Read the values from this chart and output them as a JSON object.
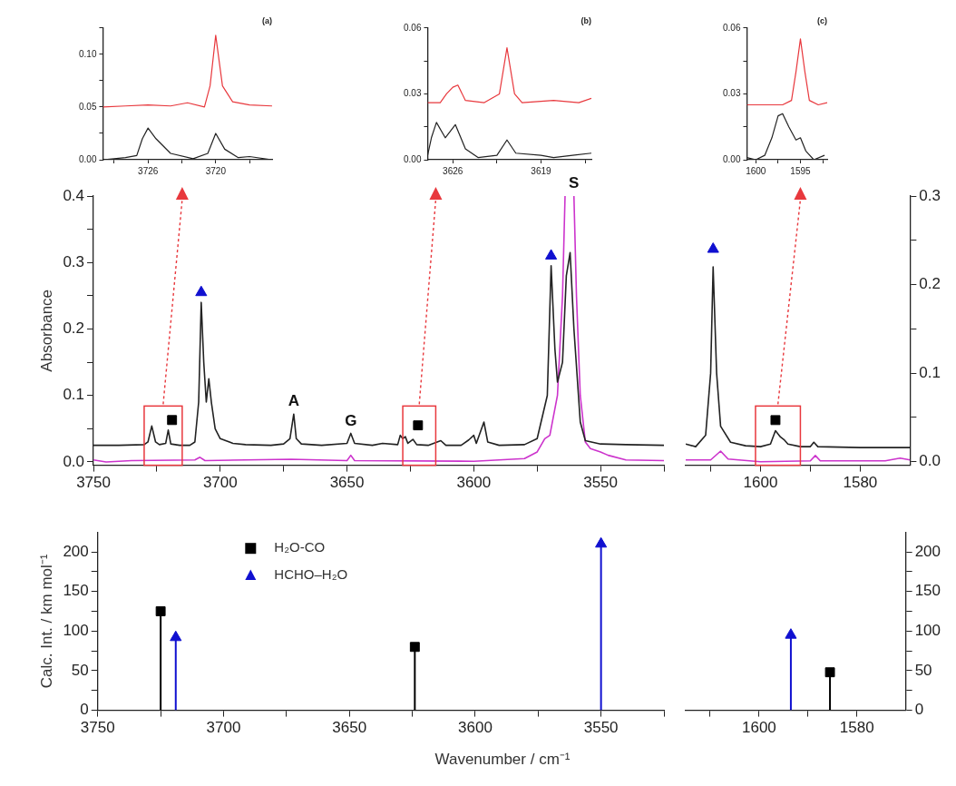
{
  "chart_data": [
    {
      "type": "line",
      "title": "(a)",
      "xlim": [
        3730,
        3715
      ],
      "xticks": [
        {
          "value": 3729,
          "label": null
        },
        3726,
        {
          "value": 3723,
          "label": null
        },
        3720,
        {
          "value": 3717,
          "label": null
        }
      ],
      "ylim": [
        0,
        0.125
      ],
      "yticks": [
        {
          "value": 0,
          "label": "0.00"
        },
        {
          "value": 0.025,
          "label": null
        },
        {
          "value": 0.05,
          "label": "0.05"
        },
        {
          "value": 0.075,
          "label": null
        },
        {
          "value": 0.1,
          "label": "0.10"
        },
        {
          "value": 0.125,
          "label": null
        }
      ],
      "series": [
        {
          "color": "#e8383d",
          "x": [
            3730,
            3728,
            3726,
            3724,
            3722.5,
            3721,
            3720.5,
            3720,
            3719.4,
            3718.5,
            3717,
            3715
          ],
          "values": [
            0.05,
            0.051,
            0.052,
            0.051,
            0.054,
            0.05,
            0.07,
            0.118,
            0.07,
            0.055,
            0.052,
            0.051
          ]
        },
        {
          "color": "#222222",
          "x": [
            3730,
            3728,
            3727,
            3726.5,
            3726,
            3725.3,
            3724,
            3722,
            3720.7,
            3720,
            3719.2,
            3718,
            3717,
            3715
          ],
          "values": [
            0,
            0.002,
            0.004,
            0.02,
            0.03,
            0.02,
            0.006,
            0.001,
            0.006,
            0.025,
            0.01,
            0.002,
            0.003,
            0
          ]
        }
      ]
    },
    {
      "type": "line",
      "title": "(b)",
      "xlim": [
        3628,
        3615
      ],
      "xticks": [
        3626,
        {
          "value": 3622.5,
          "label": null
        },
        3619,
        {
          "value": 3615.5,
          "label": null
        }
      ],
      "ylim": [
        0,
        0.06
      ],
      "yticks": [
        {
          "value": 0,
          "label": "0.00"
        },
        {
          "value": 0.015,
          "label": null
        },
        {
          "value": 0.03,
          "label": "0.03"
        },
        {
          "value": 0.045,
          "label": null
        },
        {
          "value": 0.06,
          "label": "0.06"
        }
      ],
      "series": [
        {
          "color": "#e8383d",
          "x": [
            3628,
            3627,
            3626.5,
            3626,
            3625.6,
            3625,
            3623.5,
            3622.3,
            3621.7,
            3621.1,
            3620.5,
            3618,
            3616,
            3615
          ],
          "values": [
            0.026,
            0.026,
            0.03,
            0.033,
            0.034,
            0.027,
            0.026,
            0.03,
            0.051,
            0.03,
            0.026,
            0.027,
            0.026,
            0.028
          ]
        },
        {
          "color": "#222222",
          "x": [
            3628,
            3627.7,
            3627.3,
            3626.6,
            3625.8,
            3625,
            3624,
            3622.5,
            3621.7,
            3621,
            3619,
            3618,
            3616.5,
            3615
          ],
          "values": [
            0.002,
            0.01,
            0.017,
            0.01,
            0.016,
            0.005,
            0.001,
            0.002,
            0.009,
            0.003,
            0.002,
            0.001,
            0.002,
            0.003
          ]
        }
      ]
    },
    {
      "type": "line",
      "title": "(c)",
      "xlim": [
        1601,
        1592
      ],
      "xticks": [
        1600,
        {
          "value": 1597.5,
          "label": null
        },
        1595,
        {
          "value": 1592.5,
          "label": null
        }
      ],
      "ylim": [
        0,
        0.06
      ],
      "yticks": [
        {
          "value": 0,
          "label": "0.00"
        },
        {
          "value": 0.015,
          "label": null
        },
        {
          "value": 0.03,
          "label": "0.03"
        },
        {
          "value": 0.045,
          "label": null
        },
        {
          "value": 0.06,
          "label": "0.06"
        }
      ],
      "series": [
        {
          "color": "#e8383d",
          "x": [
            1601,
            1599,
            1597,
            1596,
            1595.5,
            1595,
            1594.5,
            1594,
            1593,
            1592
          ],
          "values": [
            0.025,
            0.025,
            0.025,
            0.027,
            0.04,
            0.055,
            0.04,
            0.027,
            0.025,
            0.026
          ]
        },
        {
          "color": "#222222",
          "x": [
            1601,
            1600,
            1599,
            1598.2,
            1597.5,
            1597,
            1596.3,
            1595.5,
            1595,
            1594.4,
            1593.5,
            1592.3
          ],
          "values": [
            0.001,
            0,
            0.002,
            0.01,
            0.02,
            0.021,
            0.015,
            0.009,
            0.01,
            0.004,
            0,
            0.002
          ]
        }
      ]
    },
    {
      "type": "line",
      "ylabel": "Absorbance",
      "xlim": [
        3750,
        3525
      ],
      "xticks": [
        3750,
        {
          "value": 3725,
          "label": null
        },
        3700,
        {
          "value": 3675,
          "label": null
        },
        3650,
        {
          "value": 3625,
          "label": null
        },
        3600,
        {
          "value": 3575,
          "label": null
        },
        3550,
        {
          "value": 3525,
          "label": null
        }
      ],
      "ylim": [
        -0.005,
        0.4
      ],
      "yticks": [
        {
          "value": 0,
          "label": "0.0"
        },
        {
          "value": 0.05,
          "label": null
        },
        0.1,
        {
          "value": 0.15,
          "label": null
        },
        0.2,
        {
          "value": 0.25,
          "label": null
        },
        0.3,
        {
          "value": 0.35,
          "label": null
        },
        0.4
      ],
      "annotations": [
        {
          "text": "A",
          "x": 3671,
          "y": 0.072
        },
        {
          "text": "G",
          "x": 3648.5,
          "y": 0.043
        },
        {
          "text": "S",
          "x": 3560.5,
          "y": 0.4
        }
      ],
      "series": [
        {
          "color": "#222222",
          "x": [
            3750,
            3740,
            3730,
            3728.5,
            3727,
            3725.5,
            3724,
            3721.5,
            3720.5,
            3719.5,
            3716,
            3712,
            3710,
            3708.5,
            3707.5,
            3706.5,
            3705.5,
            3704.5,
            3703.5,
            3702,
            3700,
            3695,
            3690,
            3680,
            3675,
            3672.5,
            3671,
            3670,
            3668,
            3660,
            3650,
            3648.5,
            3647,
            3640,
            3636,
            3630,
            3629,
            3628,
            3627,
            3626,
            3624,
            3622.5,
            3618,
            3613,
            3611,
            3605,
            3602,
            3600,
            3599,
            3596,
            3594.5,
            3590,
            3580,
            3575,
            3571,
            3569.5,
            3568,
            3567,
            3565,
            3563.5,
            3562,
            3560.5,
            3558,
            3556,
            3550,
            3540,
            3525
          ],
          "values": [
            0.025,
            0.025,
            0.026,
            0.03,
            0.054,
            0.03,
            0.026,
            0.028,
            0.048,
            0.027,
            0.025,
            0.025,
            0.03,
            0.09,
            0.24,
            0.15,
            0.09,
            0.125,
            0.09,
            0.05,
            0.035,
            0.028,
            0.026,
            0.025,
            0.027,
            0.035,
            0.072,
            0.035,
            0.027,
            0.025,
            0.028,
            0.043,
            0.028,
            0.025,
            0.028,
            0.026,
            0.04,
            0.035,
            0.038,
            0.028,
            0.034,
            0.026,
            0.025,
            0.032,
            0.025,
            0.025,
            0.033,
            0.04,
            0.028,
            0.06,
            0.03,
            0.025,
            0.026,
            0.035,
            0.1,
            0.295,
            0.17,
            0.12,
            0.15,
            0.28,
            0.315,
            0.2,
            0.06,
            0.032,
            0.027,
            0.026,
            0.025
          ]
        },
        {
          "color": "#cc33cc",
          "x": [
            3750,
            3745,
            3735,
            3710,
            3708,
            3706,
            3672,
            3650,
            3648.5,
            3647,
            3600,
            3580,
            3575,
            3572,
            3570,
            3567,
            3565,
            3564,
            3562,
            3560.5,
            3559.5,
            3558,
            3556,
            3554,
            3550,
            3547,
            3540,
            3525
          ],
          "values": [
            0.003,
            0,
            0.002,
            0.003,
            0.007,
            0.002,
            0.004,
            0.002,
            0.01,
            0.002,
            0.001,
            0.005,
            0.015,
            0.035,
            0.04,
            0.1,
            0.25,
            0.4,
            null,
            0.4,
            0.25,
            0.1,
            0.03,
            0.02,
            0.015,
            0.01,
            0.003,
            0.002
          ]
        },
        {
          "type": "scatter",
          "marker": "triangle",
          "color": "#1010d0",
          "x": [
            3707.5,
            3569.5
          ],
          "values": [
            0.255,
            0.31
          ]
        },
        {
          "type": "scatter",
          "marker": "square",
          "color": "#000000",
          "x": [
            3719,
            3622
          ],
          "values": [
            0.063,
            0.055
          ]
        }
      ]
    },
    {
      "type": "line",
      "xlim": [
        1615,
        1570
      ],
      "xticks": [
        {
          "value": 1610,
          "label": null
        },
        1600,
        {
          "value": 1590,
          "label": null
        },
        1580
      ],
      "y2lim": [
        -0.004,
        0.3
      ],
      "y2ticks": [
        {
          "value": 0,
          "label": "0.0"
        },
        {
          "value": 0.05,
          "label": null
        },
        0.1,
        {
          "value": 0.15,
          "label": null
        },
        0.2,
        {
          "value": 0.25,
          "label": null
        },
        0.3
      ],
      "series": [
        {
          "color": "#222222",
          "axis": "y2",
          "x": [
            1615,
            1613,
            1611,
            1610,
            1609.5,
            1608.8,
            1608,
            1606,
            1603,
            1600,
            1598,
            1597,
            1596,
            1595.3,
            1594.5,
            1592,
            1590,
            1589.3,
            1588.5,
            1580,
            1570
          ],
          "values": [
            0.02,
            0.017,
            0.03,
            0.1,
            0.22,
            0.1,
            0.04,
            0.022,
            0.018,
            0.017,
            0.02,
            0.035,
            0.028,
            0.025,
            0.02,
            0.017,
            0.017,
            0.022,
            0.017,
            0.016,
            0.016
          ]
        },
        {
          "color": "#cc33cc",
          "axis": "y2",
          "x": [
            1615,
            1610,
            1608,
            1606.5,
            1600,
            1590,
            1589,
            1588,
            1575,
            1572,
            1570
          ],
          "values": [
            0.002,
            0.002,
            0.012,
            0.003,
            0,
            0.001,
            0.007,
            0.001,
            0.001,
            0.004,
            0.002
          ]
        },
        {
          "type": "scatter",
          "marker": "triangle",
          "color": "#1010d0",
          "axis": "y2",
          "x": [
            1609.5
          ],
          "values": [
            0.24
          ]
        },
        {
          "type": "scatter",
          "marker": "square",
          "color": "#000000",
          "axis": "y2",
          "x": [
            1597
          ],
          "values": [
            0.047
          ]
        }
      ]
    },
    {
      "type": "lollipop",
      "ylabel": "Calc. Int. / km mol⁻¹",
      "xlabel": "Wavenumber / cm⁻¹",
      "legend": "top left",
      "xlim": [
        3750,
        3525
      ],
      "xticks": [
        3750,
        {
          "value": 3725,
          "label": null
        },
        3700,
        {
          "value": 3675,
          "label": null
        },
        3650,
        {
          "value": 3625,
          "label": null
        },
        3600,
        {
          "value": 3575,
          "label": null
        },
        3550,
        {
          "value": 3525,
          "label": null
        }
      ],
      "ylim": [
        0,
        225
      ],
      "yticks": [
        0,
        {
          "value": 25,
          "label": null
        },
        50,
        {
          "value": 75,
          "label": null
        },
        100,
        {
          "value": 125,
          "label": null
        },
        150,
        {
          "value": 175,
          "label": null
        },
        200
      ],
      "series": [
        {
          "name": "H₂O-CO",
          "marker": "square",
          "color": "#000000",
          "x": [
            3725,
            3624
          ],
          "values": [
            125,
            80
          ]
        },
        {
          "name": "HCHO–H₂O",
          "marker": "triangle",
          "color": "#1010d0",
          "x": [
            3719,
            3550
          ],
          "values": [
            92,
            210
          ]
        }
      ]
    },
    {
      "type": "lollipop",
      "xlim": [
        1615,
        1570
      ],
      "xticks": [
        {
          "value": 1610,
          "label": null
        },
        1600,
        {
          "value": 1590,
          "label": null
        },
        1580
      ],
      "y2lim": [
        0,
        225
      ],
      "y2ticks": [
        0,
        {
          "value": 25,
          "label": null
        },
        50,
        {
          "value": 75,
          "label": null
        },
        100,
        {
          "value": 125,
          "label": null
        },
        150,
        {
          "value": 175,
          "label": null
        },
        200
      ],
      "series": [
        {
          "marker": "square",
          "color": "#000000",
          "axis": "y2",
          "x": [
            1585.5
          ],
          "values": [
            48
          ]
        },
        {
          "marker": "triangle",
          "color": "#1010d0",
          "axis": "y2",
          "x": [
            1593.5
          ],
          "values": [
            95
          ]
        }
      ]
    }
  ]
}
